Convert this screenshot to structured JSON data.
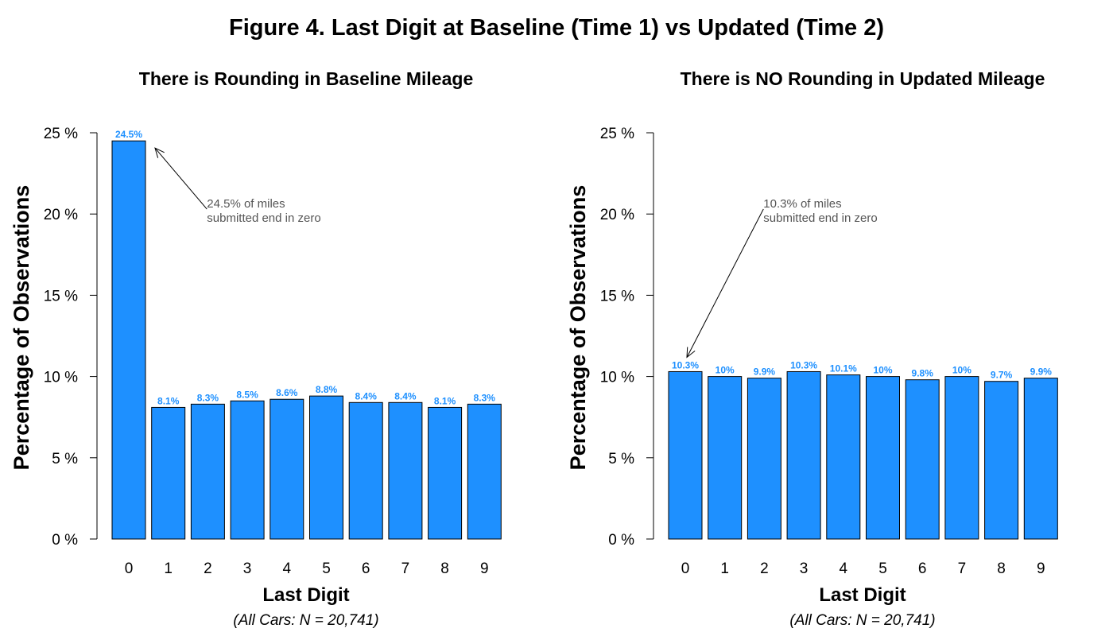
{
  "figure": {
    "title": "Figure 4. Last Digit at Baseline (Time 1) vs Updated (Time 2)"
  },
  "colors": {
    "bar": "#1E90FF",
    "value_label": "#1E90FF",
    "annotation": "#555555"
  },
  "chart_data": [
    {
      "type": "bar",
      "title": "There is Rounding in Baseline Mileage",
      "xlabel": "Last Digit",
      "ylabel": "Percentage of Observations",
      "note": "(All Cars: N = 20,741)",
      "categories": [
        "0",
        "1",
        "2",
        "3",
        "4",
        "5",
        "6",
        "7",
        "8",
        "9"
      ],
      "values": [
        24.5,
        8.1,
        8.3,
        8.5,
        8.6,
        8.8,
        8.4,
        8.4,
        8.1,
        8.3
      ],
      "value_labels": [
        "24.5%",
        "8.1%",
        "8.3%",
        "8.5%",
        "8.6%",
        "8.8%",
        "8.4%",
        "8.4%",
        "8.1%",
        "8.3%"
      ],
      "ylim": [
        0,
        25
      ],
      "yticks": [
        0,
        5,
        10,
        15,
        20,
        25
      ],
      "ytick_labels": [
        "0 %",
        "5 %",
        "10 %",
        "15 %",
        "20 %",
        "25 %"
      ],
      "annotation": {
        "lines": [
          "24.5% of miles",
          "submitted end in zero"
        ],
        "target_category": "0",
        "text_x": 2.4,
        "text_y": 20.4
      },
      "grid": false,
      "legend": "none"
    },
    {
      "type": "bar",
      "title": "There is NO Rounding in Updated Mileage",
      "xlabel": "Last Digit",
      "ylabel": "Percentage of Observations",
      "note": "(All Cars: N = 20,741)",
      "categories": [
        "0",
        "1",
        "2",
        "3",
        "4",
        "5",
        "6",
        "7",
        "8",
        "9"
      ],
      "values": [
        10.3,
        10.0,
        9.9,
        10.3,
        10.1,
        10.0,
        9.8,
        10.0,
        9.7,
        9.9
      ],
      "value_labels": [
        "10.3%",
        "10%",
        "9.9%",
        "10.3%",
        "10.1%",
        "10%",
        "9.8%",
        "10%",
        "9.7%",
        "9.9%"
      ],
      "ylim": [
        0,
        25
      ],
      "yticks": [
        0,
        5,
        10,
        15,
        20,
        25
      ],
      "ytick_labels": [
        "0 %",
        "5 %",
        "10 %",
        "15 %",
        "20 %",
        "25 %"
      ],
      "annotation": {
        "lines": [
          "10.3% of miles",
          "submitted end in zero"
        ],
        "target_category": "0",
        "text_x": 2.4,
        "text_y": 20.4
      },
      "grid": false,
      "legend": "none"
    }
  ]
}
